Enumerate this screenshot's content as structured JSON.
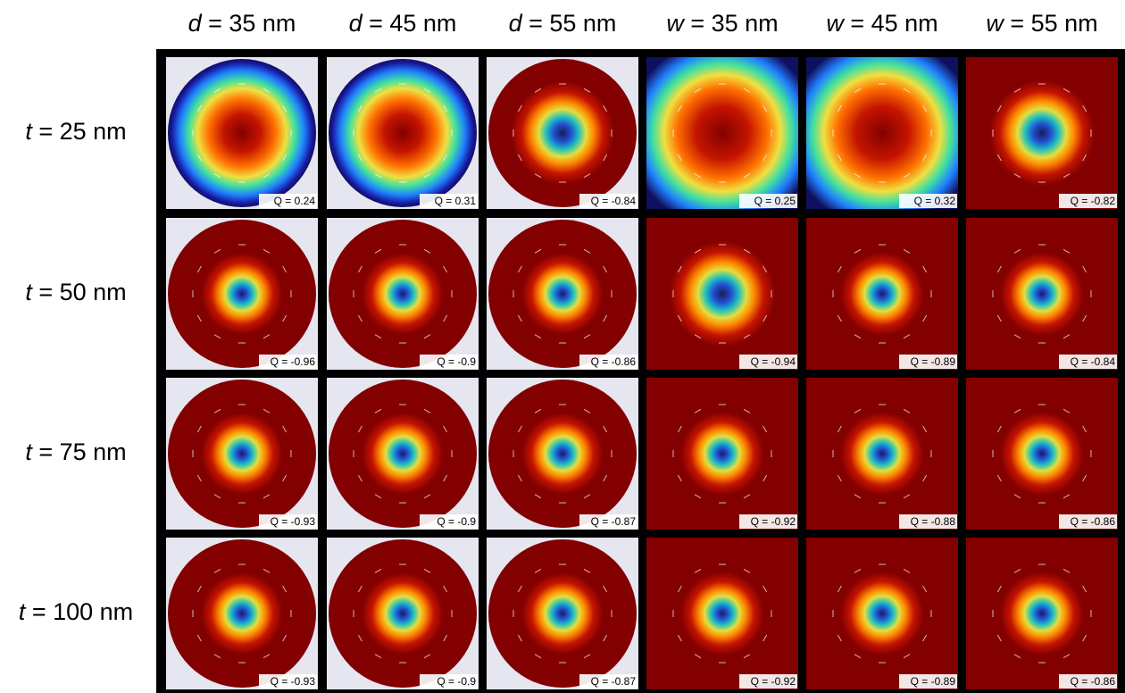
{
  "columns": [
    {
      "var": "d",
      "rest": " = 35 nm"
    },
    {
      "var": "d",
      "rest": " = 45 nm"
    },
    {
      "var": "d",
      "rest": " = 55 nm"
    },
    {
      "var": "w",
      "rest": " = 35 nm"
    },
    {
      "var": "w",
      "rest": " = 45 nm"
    },
    {
      "var": "w",
      "rest": " = 55 nm"
    }
  ],
  "rows": [
    {
      "var": "t",
      "rest": " = 25 nm",
      "q": [
        "Q = 0.24",
        "Q = 0.31",
        "Q = -0.84",
        "Q = 0.25",
        "Q = 0.32",
        "Q = -0.82"
      ]
    },
    {
      "var": "t",
      "rest": " = 50 nm",
      "q": [
        "Q = -0.96",
        "Q = -0.9",
        "Q = -0.86",
        "Q = -0.94",
        "Q = -0.89",
        "Q = -0.84"
      ]
    },
    {
      "var": "t",
      "rest": " = 75 nm",
      "q": [
        "Q = -0.93",
        "Q = -0.9",
        "Q = -0.87",
        "Q = -0.92",
        "Q = -0.88",
        "Q = -0.86"
      ]
    },
    {
      "var": "t",
      "rest": " = 100 nm",
      "q": [
        "Q = -0.93",
        "Q = -0.9",
        "Q = -0.87",
        "Q = -0.92",
        "Q = -0.89",
        "Q = -0.86"
      ]
    }
  ]
}
